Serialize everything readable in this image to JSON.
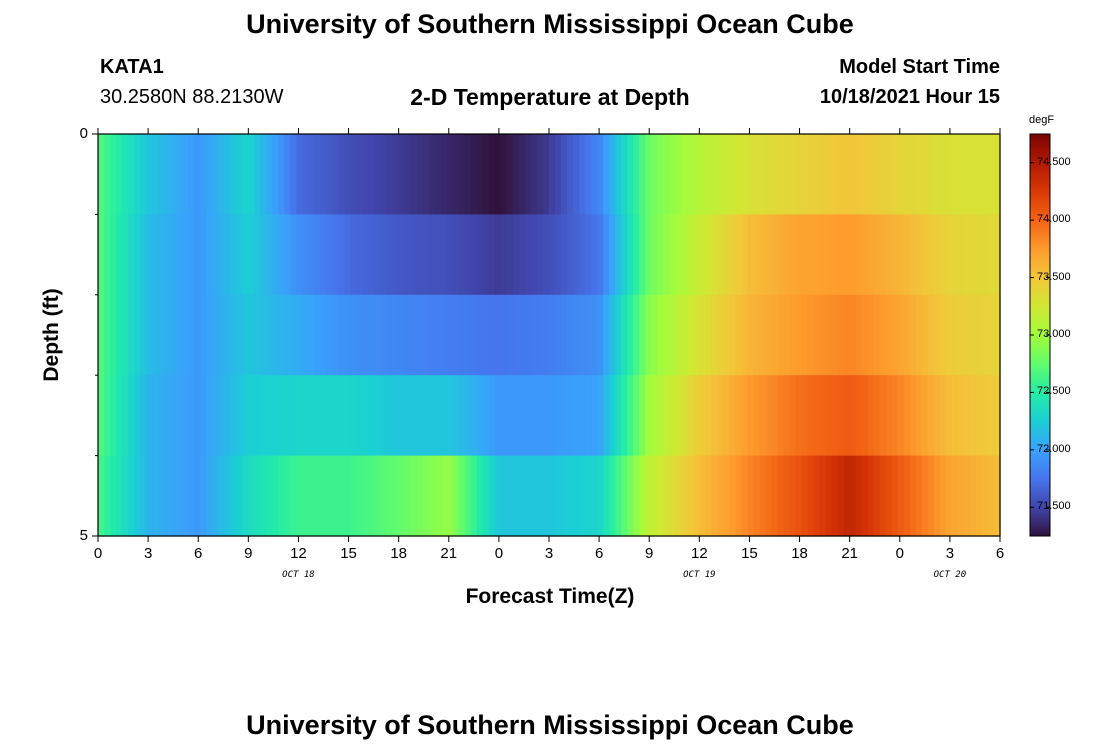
{
  "header": {
    "title": "University of Southern Mississippi Ocean Cube",
    "station": "KATA1",
    "coords": "30.2580N  88.2130W",
    "subtitle": "2-D Temperature at Depth",
    "model_label": "Model Start Time",
    "model_time": "10/18/2021 Hour 15"
  },
  "footer": {
    "title": "University of Southern Mississippi Ocean Cube"
  },
  "chart_data": {
    "type": "heatmap",
    "xlabel": "Forecast Time(Z)",
    "ylabel": "Depth (ft)",
    "x_tick_labels": [
      "0",
      "3",
      "6",
      "9",
      "12",
      "15",
      "18",
      "21",
      "0",
      "3",
      "6",
      "9",
      "12",
      "15",
      "18",
      "21",
      "0",
      "3",
      "6"
    ],
    "x_date_labels": [
      {
        "label": "OCT 18",
        "at_tick": 4
      },
      {
        "label": "OCT 19",
        "at_tick": 12
      },
      {
        "label": "OCT 20",
        "at_tick": 17
      }
    ],
    "y_tick_labels": [
      "0",
      "5"
    ],
    "ylim": [
      0,
      5
    ],
    "depth_layers": 5,
    "colorbar": {
      "unit": "degF",
      "range": [
        71.25,
        74.75
      ],
      "ticks": [
        "71.500",
        "72.000",
        "72.500",
        "73.000",
        "73.500",
        "74.000",
        "74.500"
      ],
      "tick_values": [
        71.5,
        72.0,
        72.5,
        73.0,
        73.5,
        74.0,
        74.5
      ],
      "colors": [
        "#30123b",
        "#4145ab",
        "#4675ed",
        "#39a2fc",
        "#1bcfd4",
        "#24eca6",
        "#61fc6c",
        "#a4fc3b",
        "#d1e834",
        "#f3c63a",
        "#fe9b2d",
        "#f36315",
        "#d93806",
        "#b11901",
        "#7a0402"
      ]
    },
    "hours": [
      0,
      3,
      6,
      9,
      12,
      15,
      18,
      21,
      24,
      27,
      30,
      33,
      36,
      39,
      42,
      45,
      48,
      51,
      54
    ],
    "temperature_degF_by_layer": [
      [
        72.7,
        72.2,
        71.95,
        72.3,
        71.7,
        71.55,
        71.45,
        71.35,
        71.25,
        71.45,
        71.85,
        72.8,
        73.1,
        73.3,
        73.4,
        73.5,
        73.4,
        73.3,
        73.3
      ],
      [
        72.7,
        72.15,
        71.95,
        72.25,
        71.9,
        71.7,
        71.6,
        71.55,
        71.45,
        71.55,
        71.75,
        72.8,
        73.2,
        73.55,
        73.7,
        73.75,
        73.6,
        73.4,
        73.35
      ],
      [
        72.7,
        72.15,
        71.95,
        72.2,
        72.05,
        71.9,
        71.85,
        71.8,
        71.75,
        71.8,
        71.9,
        72.9,
        73.3,
        73.6,
        73.75,
        73.85,
        73.7,
        73.45,
        73.4
      ],
      [
        72.7,
        72.1,
        71.95,
        72.25,
        72.3,
        72.3,
        72.2,
        72.2,
        71.95,
        71.95,
        72.0,
        73.0,
        73.45,
        73.75,
        73.95,
        74.05,
        73.85,
        73.55,
        73.45
      ],
      [
        72.65,
        72.1,
        71.95,
        72.35,
        72.6,
        72.6,
        72.75,
        72.95,
        72.2,
        72.2,
        72.3,
        73.15,
        73.55,
        73.85,
        74.1,
        74.4,
        74.05,
        73.7,
        73.55
      ]
    ]
  }
}
